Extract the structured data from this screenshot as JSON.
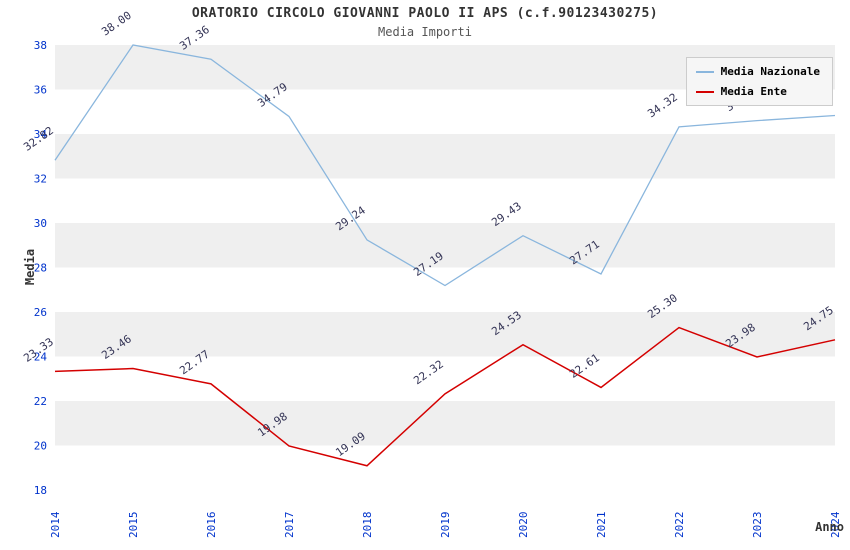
{
  "header": {
    "title": "ORATORIO CIRCOLO GIOVANNI PAOLO II APS (c.f.90123430275)",
    "subtitle": "Media Importi"
  },
  "chart_data": {
    "type": "line",
    "x": [
      2014,
      2015,
      2016,
      2017,
      2018,
      2019,
      2020,
      2021,
      2022,
      2023,
      2024
    ],
    "xlabel": "Anno",
    "ylabel": "Media",
    "ylim": [
      18,
      38
    ],
    "ytick_step": 2,
    "grid": "alternating-horizontal-bands",
    "legend_position": "top-right",
    "series": [
      {
        "name": "Media Nazionale",
        "color": "#8ab6dd",
        "values": [
          32.82,
          38.0,
          37.36,
          34.79,
          29.24,
          27.19,
          29.43,
          27.71,
          34.32,
          34.6,
          34.83
        ]
      },
      {
        "name": "Media Ente",
        "color": "#d40000",
        "values": [
          23.33,
          23.46,
          22.77,
          19.98,
          19.09,
          22.32,
          24.53,
          22.61,
          25.3,
          23.98,
          24.75
        ]
      }
    ]
  },
  "colors": {
    "tick_label": "#0033cc",
    "value_label": "#333355",
    "band_gray": "#efefef",
    "band_white": "#ffffff",
    "axis_title": "#333333",
    "legend_bg": "#f6f6f6",
    "legend_border": "#cccccc"
  }
}
